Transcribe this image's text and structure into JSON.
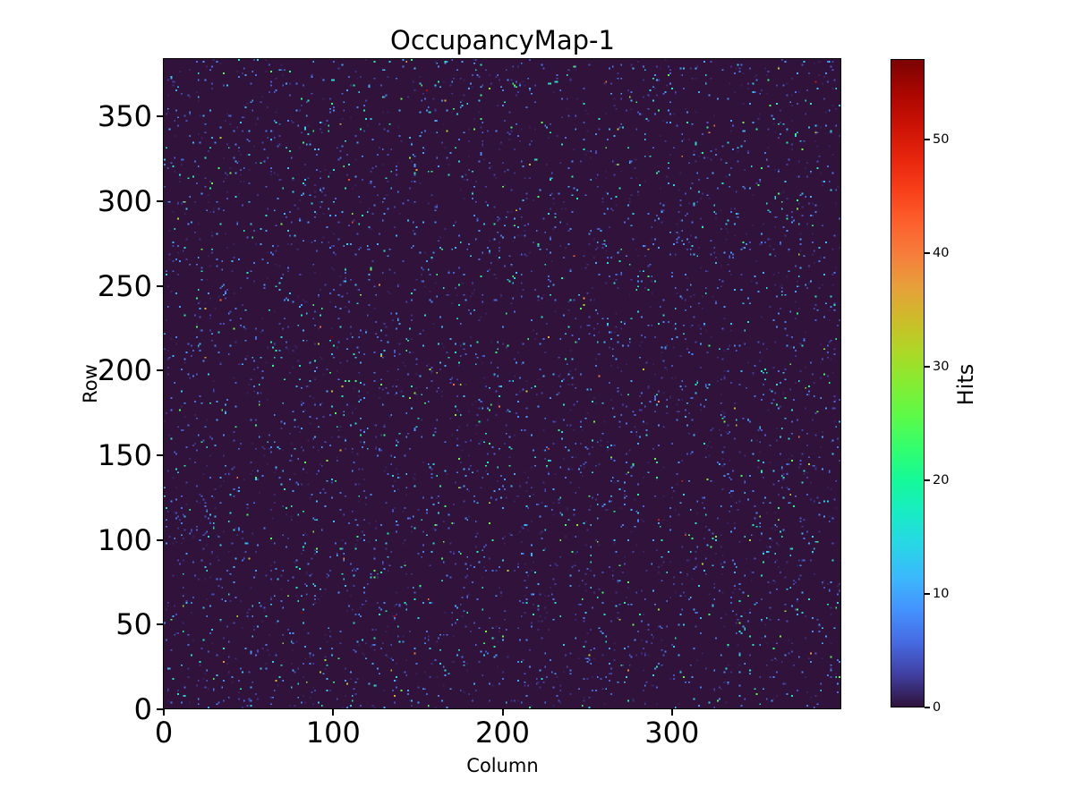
{
  "figure": {
    "background_color": "#ffffff",
    "text_color": "#000000"
  },
  "chart_data": {
    "type": "heatmap",
    "title": "OccupancyMap-1",
    "xlabel": "Column",
    "ylabel": "Row",
    "colorbar_label": "Hits",
    "colormap": "turbo",
    "vmin": 0,
    "vmax": 57,
    "grid": {
      "cols": 400,
      "rows": 384
    },
    "x_range": [
      0,
      400
    ],
    "y_range": [
      0,
      384
    ],
    "xticks": [
      0,
      100,
      200,
      300
    ],
    "yticks": [
      0,
      50,
      100,
      150,
      200,
      250,
      300,
      350
    ],
    "colorbar_ticks": [
      0,
      10,
      20,
      30,
      40,
      50
    ],
    "background_value": 0,
    "hit_fraction": 0.033,
    "hit_value_mean": 7,
    "render_seed": 20240613,
    "cmap_min_color": "#30123b",
    "cmap_max_color": "#7a0403",
    "legend": "none",
    "grid_lines": false
  }
}
